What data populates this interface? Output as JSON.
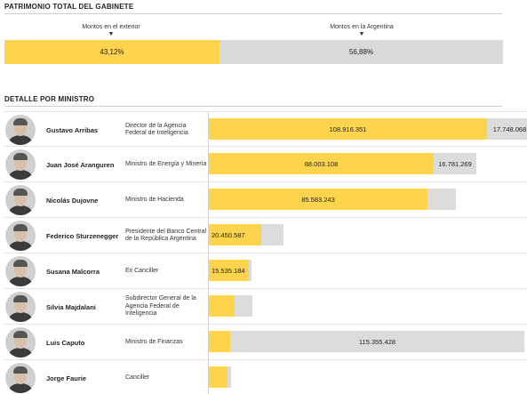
{
  "header": {
    "total_title": "PATRIMONIO TOTAL DEL GABINETE",
    "detail_title": "DETALLE POR MINISTRO"
  },
  "markers": {
    "exterior": "Montos en el exterior",
    "argentina": "Montos en la Argentina",
    "arrow": "▼"
  },
  "colors": {
    "exterior": "#fdd44c",
    "argentina": "#dcdcdc"
  },
  "chart_data": [
    {
      "type": "bar",
      "orientation": "horizontal-stacked-100",
      "title": "PATRIMONIO TOTAL DEL GABINETE",
      "categories": [
        "Gabinete"
      ],
      "series": [
        {
          "name": "Montos en el exterior",
          "values": [
            43.12
          ],
          "label": "43,12%"
        },
        {
          "name": "Montos en la Argentina",
          "values": [
            56.88
          ],
          "label": "56,88%"
        }
      ]
    },
    {
      "type": "bar",
      "orientation": "horizontal-stacked",
      "title": "DETALLE POR MINISTRO",
      "xlim": [
        0,
        125000000
      ],
      "rows": [
        {
          "name": "Gustavo Arribas",
          "role": "Director de la Agencia Federal de Inteligencia",
          "ext": 108916351,
          "ext_label": "108.916.351",
          "arg": 17748068,
          "arg_label": "17.748.068"
        },
        {
          "name": "Juan José Aranguren",
          "role": "Ministro de Energía y Minería",
          "ext": 88003108,
          "ext_label": "88.003.108",
          "arg": 16781269,
          "arg_label": "16.781.269"
        },
        {
          "name": "Nicolás Dujovne",
          "role": "Ministro de Hacienda",
          "ext": 85583243,
          "ext_label": "85.583.243",
          "arg": 11000000,
          "arg_label": ""
        },
        {
          "name": "Federico Sturzenegger",
          "role": "Presidente del Banco Central de la República Argentina",
          "ext": 20450587,
          "ext_label": "20.450.587",
          "arg": 8700000,
          "arg_label": ""
        },
        {
          "name": "Susana Malcorra",
          "role": "Ex Canciller",
          "ext": 15535184,
          "ext_label": "15.535.184",
          "arg": 900000,
          "arg_label": ""
        },
        {
          "name": "Silvia Majdalani",
          "role": "Subdirector General de la Agencia Federal de Inteligencia",
          "ext": 10000000,
          "ext_label": "",
          "arg": 7000000,
          "arg_label": ""
        },
        {
          "name": "Luis Caputo",
          "role": "Ministro de Finanzas",
          "ext": 8500000,
          "ext_label": "",
          "arg": 115355428,
          "arg_label": "115.355.428"
        },
        {
          "name": "Jorge Faurie",
          "role": "Canciller",
          "ext": 7300000,
          "ext_label": "",
          "arg": 1400000,
          "arg_label": ""
        }
      ]
    }
  ]
}
